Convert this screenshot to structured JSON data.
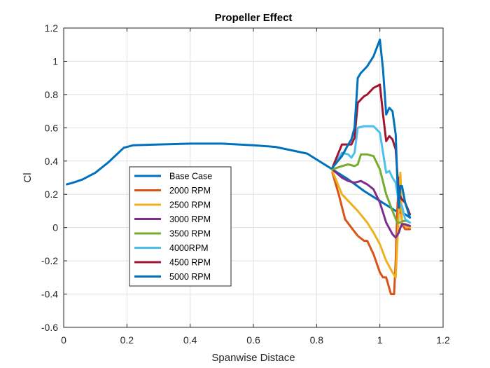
{
  "chart_data": {
    "type": "line",
    "title": "Propeller Effect",
    "xlabel": "Spanwise Distace",
    "ylabel": "Cl",
    "xlim": [
      0,
      1.2
    ],
    "ylim": [
      -0.6,
      1.2
    ],
    "xticks": [
      0,
      0.2,
      0.4,
      0.6,
      0.8,
      1,
      1.2
    ],
    "xtick_labels": [
      "0",
      "0.2",
      "0.4",
      "0.6",
      "0.8",
      "1",
      "1.2"
    ],
    "yticks": [
      -0.6,
      -0.4,
      -0.2,
      0,
      0.2,
      0.4,
      0.6,
      0.8,
      1,
      1.2
    ],
    "ytick_labels": [
      "-0.6",
      "-0.4",
      "-0.2",
      "0",
      "0.2",
      "0.4",
      "0.6",
      "0.8",
      "1",
      "1.2"
    ],
    "grid": true,
    "legend_position": "center-left",
    "series": [
      {
        "name": "Base Case",
        "color": "#0072BD",
        "x": [
          0.01,
          0.03,
          0.06,
          0.1,
          0.14,
          0.19,
          0.22,
          0.3,
          0.4,
          0.5,
          0.6,
          0.67,
          0.77,
          0.85,
          0.9,
          0.95,
          1.0,
          1.05,
          1.08,
          1.095
        ],
        "y": [
          0.26,
          0.27,
          0.29,
          0.33,
          0.39,
          0.48,
          0.495,
          0.5,
          0.505,
          0.505,
          0.495,
          0.485,
          0.445,
          0.35,
          0.29,
          0.22,
          0.16,
          0.1,
          0.08,
          0.06
        ]
      },
      {
        "name": "2000 RPM",
        "color": "#D95319",
        "x": [
          0.85,
          0.87,
          0.89,
          0.91,
          0.93,
          0.95,
          0.96,
          0.97,
          0.98,
          1.0,
          1.01,
          1.02,
          1.035,
          1.045,
          1.05,
          1.055,
          1.06,
          1.07,
          1.08,
          1.095
        ],
        "y": [
          0.33,
          0.2,
          0.05,
          0.0,
          -0.05,
          -0.08,
          -0.08,
          -0.12,
          -0.16,
          -0.27,
          -0.3,
          -0.3,
          -0.4,
          -0.4,
          -0.2,
          0.1,
          0.3,
          0.02,
          -0.01,
          -0.01
        ]
      },
      {
        "name": "2500 RPM",
        "color": "#EDB120",
        "x": [
          0.85,
          0.88,
          0.9,
          0.93,
          0.96,
          0.98,
          1.0,
          1.02,
          1.04,
          1.05,
          1.06,
          1.065,
          1.07,
          1.08,
          1.095
        ],
        "y": [
          0.34,
          0.2,
          0.16,
          0.1,
          0.03,
          -0.03,
          -0.1,
          -0.2,
          -0.27,
          -0.3,
          0.1,
          0.33,
          0.03,
          0.01,
          0.0
        ]
      },
      {
        "name": "3000 RPM",
        "color": "#7E2F8E",
        "x": [
          0.85,
          0.88,
          0.9,
          0.92,
          0.94,
          0.96,
          0.98,
          1.0,
          1.02,
          1.04,
          1.05,
          1.06,
          1.065,
          1.07,
          1.08,
          1.095
        ],
        "y": [
          0.35,
          0.3,
          0.28,
          0.27,
          0.28,
          0.26,
          0.23,
          0.15,
          0.03,
          -0.04,
          -0.06,
          -0.03,
          0.0,
          0.02,
          0.02,
          0.01
        ]
      },
      {
        "name": "3500 RPM",
        "color": "#77AC30",
        "x": [
          0.85,
          0.88,
          0.9,
          0.92,
          0.93,
          0.94,
          0.96,
          0.98,
          1.0,
          1.02,
          1.04,
          1.055,
          1.065,
          1.075,
          1.085,
          1.095
        ],
        "y": [
          0.35,
          0.37,
          0.38,
          0.37,
          0.38,
          0.44,
          0.44,
          0.43,
          0.35,
          0.2,
          0.1,
          0.03,
          0.03,
          0.04,
          0.04,
          0.03
        ]
      },
      {
        "name": "4000RPM",
        "color": "#4DBEEE",
        "x": [
          0.85,
          0.88,
          0.9,
          0.91,
          0.92,
          0.93,
          0.95,
          0.98,
          1.0,
          1.02,
          1.03,
          1.04,
          1.05,
          1.06,
          1.07,
          1.08,
          1.095
        ],
        "y": [
          0.36,
          0.45,
          0.44,
          0.42,
          0.45,
          0.6,
          0.61,
          0.61,
          0.57,
          0.33,
          0.34,
          0.3,
          0.27,
          0.15,
          0.13,
          0.05,
          0.03
        ]
      },
      {
        "name": "4500 RPM",
        "color": "#A2142F",
        "x": [
          0.85,
          0.88,
          0.9,
          0.91,
          0.92,
          0.93,
          0.95,
          0.96,
          0.98,
          1.0,
          1.01,
          1.02,
          1.03,
          1.04,
          1.05,
          1.06,
          1.07,
          1.08,
          1.095
        ],
        "y": [
          0.36,
          0.5,
          0.5,
          0.5,
          0.54,
          0.75,
          0.79,
          0.8,
          0.84,
          0.86,
          0.68,
          0.52,
          0.55,
          0.53,
          0.47,
          0.2,
          0.17,
          0.15,
          0.08
        ]
      },
      {
        "name": "5000 RPM",
        "color": "#0072BD",
        "x": [
          0.85,
          0.88,
          0.9,
          0.91,
          0.92,
          0.93,
          0.94,
          0.96,
          0.98,
          1.0,
          1.01,
          1.02,
          1.03,
          1.04,
          1.05,
          1.055,
          1.06,
          1.065,
          1.07,
          1.08,
          1.095
        ],
        "y": [
          0.36,
          0.43,
          0.5,
          0.53,
          0.6,
          0.9,
          0.93,
          0.97,
          1.03,
          1.13,
          0.95,
          0.68,
          0.72,
          0.7,
          0.56,
          0.3,
          0.12,
          0.25,
          0.25,
          0.15,
          0.06
        ]
      }
    ]
  }
}
